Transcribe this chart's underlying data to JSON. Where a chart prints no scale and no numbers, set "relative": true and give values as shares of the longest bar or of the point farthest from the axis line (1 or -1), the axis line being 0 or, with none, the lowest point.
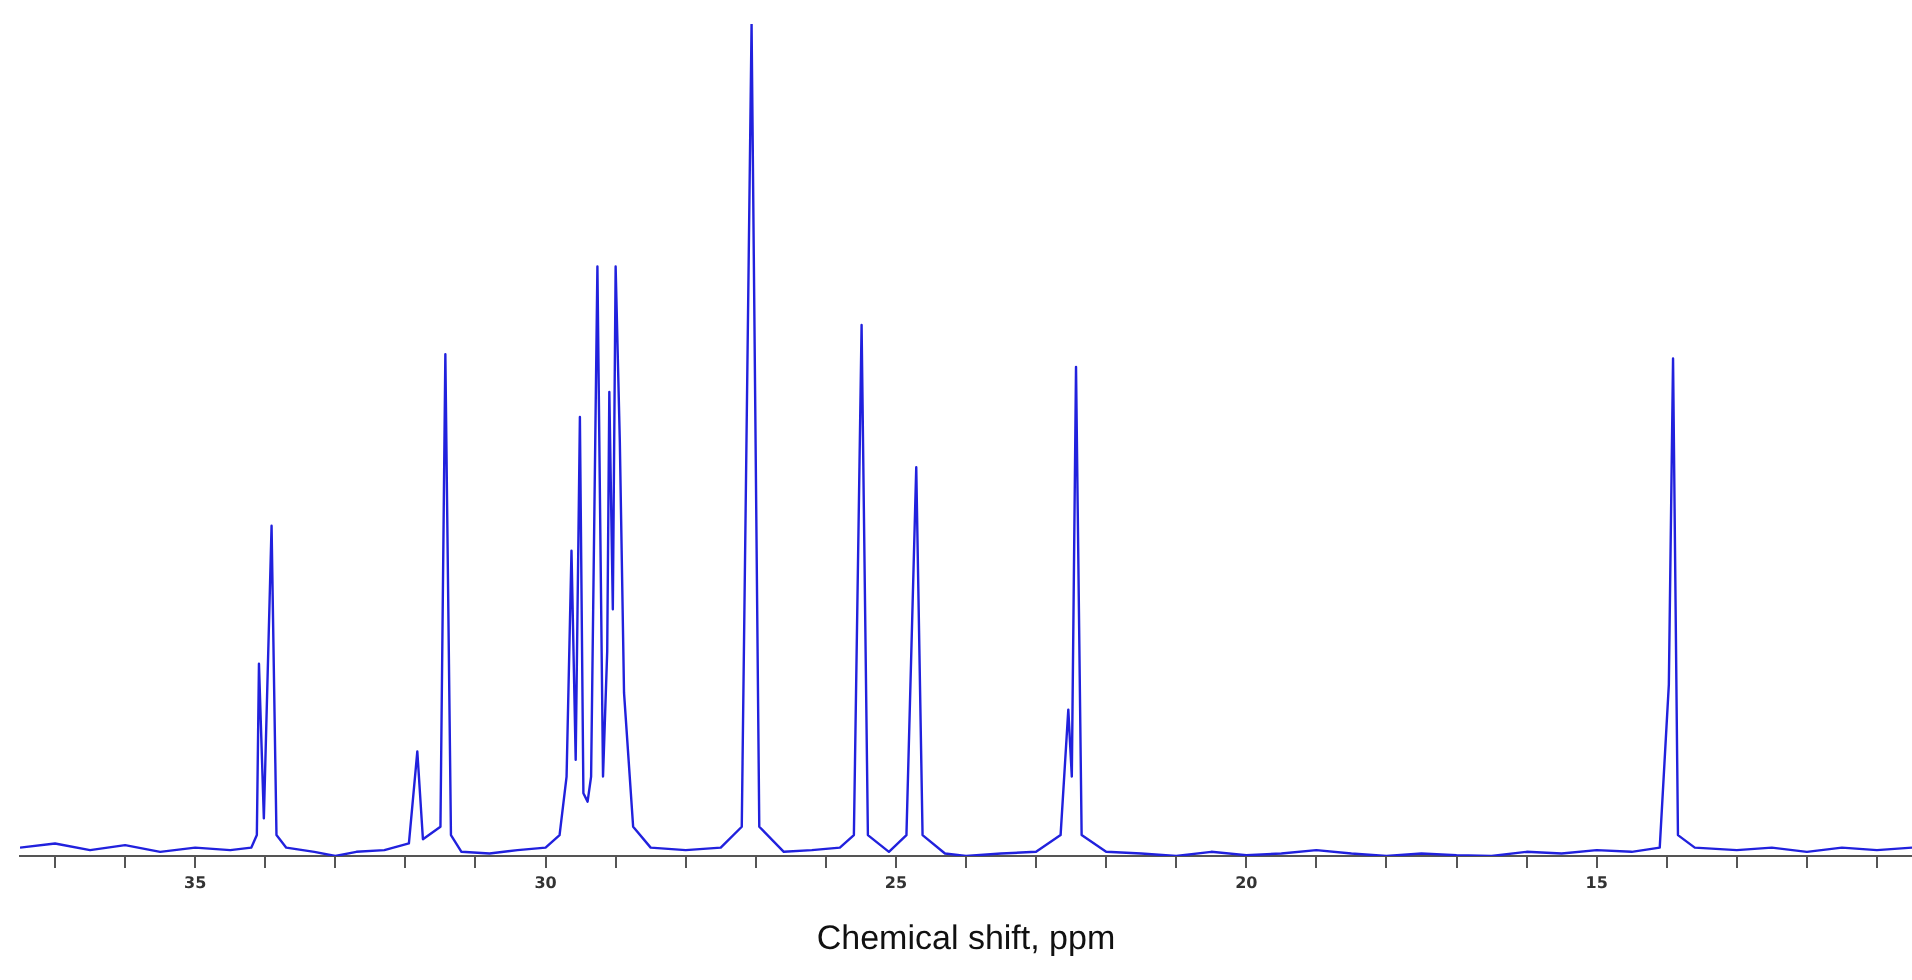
{
  "chart_data": {
    "type": "line",
    "xlabel": "Chemical shift, ppm",
    "relative": true,
    "xlim": [
      37.5,
      10.5
    ],
    "xticks": [
      {
        "value": 37,
        "label": null
      },
      {
        "value": 36,
        "label": null
      },
      35,
      {
        "value": 34,
        "label": null
      },
      {
        "value": 33,
        "label": null
      },
      {
        "value": 32,
        "label": null
      },
      {
        "value": 31,
        "label": null
      },
      30,
      {
        "value": 29,
        "label": null
      },
      {
        "value": 28,
        "label": null
      },
      {
        "value": 27,
        "label": null
      },
      {
        "value": 26,
        "label": null
      },
      25,
      {
        "value": 24,
        "label": null
      },
      {
        "value": 23,
        "label": null
      },
      {
        "value": 22,
        "label": null
      },
      {
        "value": 21,
        "label": null
      },
      20,
      {
        "value": 19,
        "label": null
      },
      {
        "value": 18,
        "label": null
      },
      {
        "value": 17,
        "label": null
      },
      {
        "value": 16,
        "label": null
      },
      15,
      {
        "value": 14,
        "label": null
      },
      {
        "value": 13,
        "label": null
      },
      {
        "value": 12,
        "label": null
      },
      {
        "value": 11,
        "label": null
      }
    ],
    "tick_labels": "x",
    "grid": false,
    "legend": false,
    "marker": "none",
    "line_style": "solid",
    "series": [
      {
        "color": "#2121dd",
        "x": [
          37.5,
          37.0,
          36.5,
          36.0,
          35.5,
          35.0,
          34.5,
          34.2,
          34.12,
          34.09,
          34.02,
          33.91,
          33.84,
          33.7,
          33.3,
          33.0,
          32.7,
          32.3,
          31.95,
          31.83,
          31.75,
          31.5,
          31.43,
          31.35,
          31.2,
          30.8,
          30.4,
          30.0,
          29.8,
          29.7,
          29.63,
          29.57,
          29.51,
          29.46,
          29.4,
          29.35,
          29.26,
          29.18,
          29.12,
          29.09,
          29.04,
          29.0,
          28.94,
          28.88,
          28.75,
          28.5,
          28.0,
          27.5,
          27.2,
          27.06,
          26.95,
          26.6,
          26.2,
          25.8,
          25.6,
          25.49,
          25.4,
          25.1,
          24.85,
          24.71,
          24.62,
          24.3,
          24.0,
          23.5,
          23.0,
          22.65,
          22.54,
          22.49,
          22.43,
          22.35,
          22.0,
          21.5,
          21.0,
          20.5,
          20.0,
          19.5,
          19.0,
          18.5,
          18.0,
          17.5,
          17.0,
          16.5,
          16.0,
          15.5,
          15.0,
          14.5,
          14.1,
          13.97,
          13.91,
          13.84,
          13.6,
          13.0,
          12.5,
          12.0,
          11.5,
          11.0,
          10.5
        ],
        "values": [
          0.015,
          0.02,
          0.012,
          0.018,
          0.01,
          0.015,
          0.012,
          0.015,
          0.03,
          0.235,
          0.05,
          0.4,
          0.03,
          0.015,
          0.01,
          0.005,
          0.01,
          0.012,
          0.02,
          0.13,
          0.025,
          0.04,
          0.605,
          0.03,
          0.01,
          0.008,
          0.012,
          0.015,
          0.03,
          0.1,
          0.37,
          0.12,
          0.53,
          0.08,
          0.07,
          0.1,
          0.71,
          0.1,
          0.25,
          0.56,
          0.3,
          0.71,
          0.5,
          0.2,
          0.04,
          0.015,
          0.012,
          0.015,
          0.04,
          1.0,
          0.04,
          0.01,
          0.012,
          0.015,
          0.03,
          0.64,
          0.03,
          0.01,
          0.03,
          0.47,
          0.03,
          0.008,
          0.005,
          0.008,
          0.01,
          0.03,
          0.18,
          0.1,
          0.59,
          0.03,
          0.01,
          0.008,
          0.005,
          0.01,
          0.006,
          0.008,
          0.012,
          0.008,
          0.005,
          0.008,
          0.006,
          0.005,
          0.01,
          0.008,
          0.012,
          0.01,
          0.015,
          0.21,
          0.6,
          0.03,
          0.015,
          0.012,
          0.015,
          0.01,
          0.015,
          0.012,
          0.015
        ]
      }
    ]
  }
}
